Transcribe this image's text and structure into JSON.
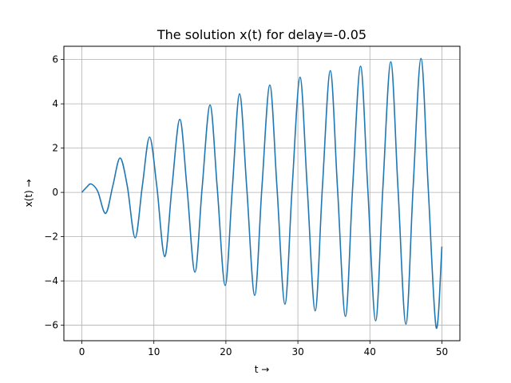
{
  "chart_data": {
    "type": "line",
    "title": "The solution x(t) for delay=-0.05",
    "xlabel": "t →",
    "ylabel": "x(t) →",
    "xlim": [
      -2.5,
      52.5
    ],
    "ylim": [
      -6.7,
      6.6
    ],
    "xticks": [
      0,
      10,
      20,
      30,
      40,
      50
    ],
    "yticks": [
      -6,
      -4,
      -2,
      0,
      2,
      4,
      6
    ],
    "xtick_labels": [
      "0",
      "10",
      "20",
      "30",
      "40",
      "50"
    ],
    "ytick_labels": [
      "−6",
      "−4",
      "−2",
      "0",
      "2",
      "4",
      "6"
    ],
    "grid": true,
    "legend": "none",
    "series": [
      {
        "color": "#1f77b4",
        "points": [
          [
            0,
            0
          ],
          [
            0.7,
            0.25
          ],
          [
            1.3,
            0.38
          ],
          [
            2.2,
            0.05
          ],
          [
            3.3,
            -0.95
          ],
          [
            4.3,
            0.3
          ],
          [
            5.3,
            1.55
          ],
          [
            6.3,
            0.3
          ],
          [
            7.4,
            -2.05
          ],
          [
            8.4,
            0.3
          ],
          [
            9.4,
            2.5
          ],
          [
            10.4,
            0.3
          ],
          [
            11.5,
            -2.9
          ],
          [
            12.5,
            0.2
          ],
          [
            13.6,
            3.3
          ],
          [
            14.6,
            0.2
          ],
          [
            15.7,
            -3.6
          ],
          [
            16.7,
            0.2
          ],
          [
            17.8,
            3.95
          ],
          [
            18.8,
            0.2
          ],
          [
            19.9,
            -4.2
          ],
          [
            20.9,
            0.2
          ],
          [
            21.9,
            4.45
          ],
          [
            22.9,
            0.2
          ],
          [
            24.0,
            -4.65
          ],
          [
            25.0,
            0.2
          ],
          [
            26.1,
            4.85
          ],
          [
            27.1,
            0.2
          ],
          [
            28.2,
            -5.05
          ],
          [
            29.2,
            0.2
          ],
          [
            30.3,
            5.2
          ],
          [
            31.3,
            0.2
          ],
          [
            32.4,
            -5.35
          ],
          [
            33.4,
            0.2
          ],
          [
            34.5,
            5.5
          ],
          [
            35.5,
            0.2
          ],
          [
            36.6,
            -5.6
          ],
          [
            37.6,
            0.2
          ],
          [
            38.7,
            5.7
          ],
          [
            39.7,
            0.2
          ],
          [
            40.8,
            -5.8
          ],
          [
            41.8,
            0.2
          ],
          [
            42.9,
            5.9
          ],
          [
            43.9,
            0.2
          ],
          [
            45.0,
            -5.95
          ],
          [
            46.0,
            0.2
          ],
          [
            47.1,
            6.05
          ],
          [
            48.1,
            0.2
          ],
          [
            49.2,
            -6.1
          ],
          [
            50.0,
            -2.45
          ]
        ]
      }
    ]
  }
}
